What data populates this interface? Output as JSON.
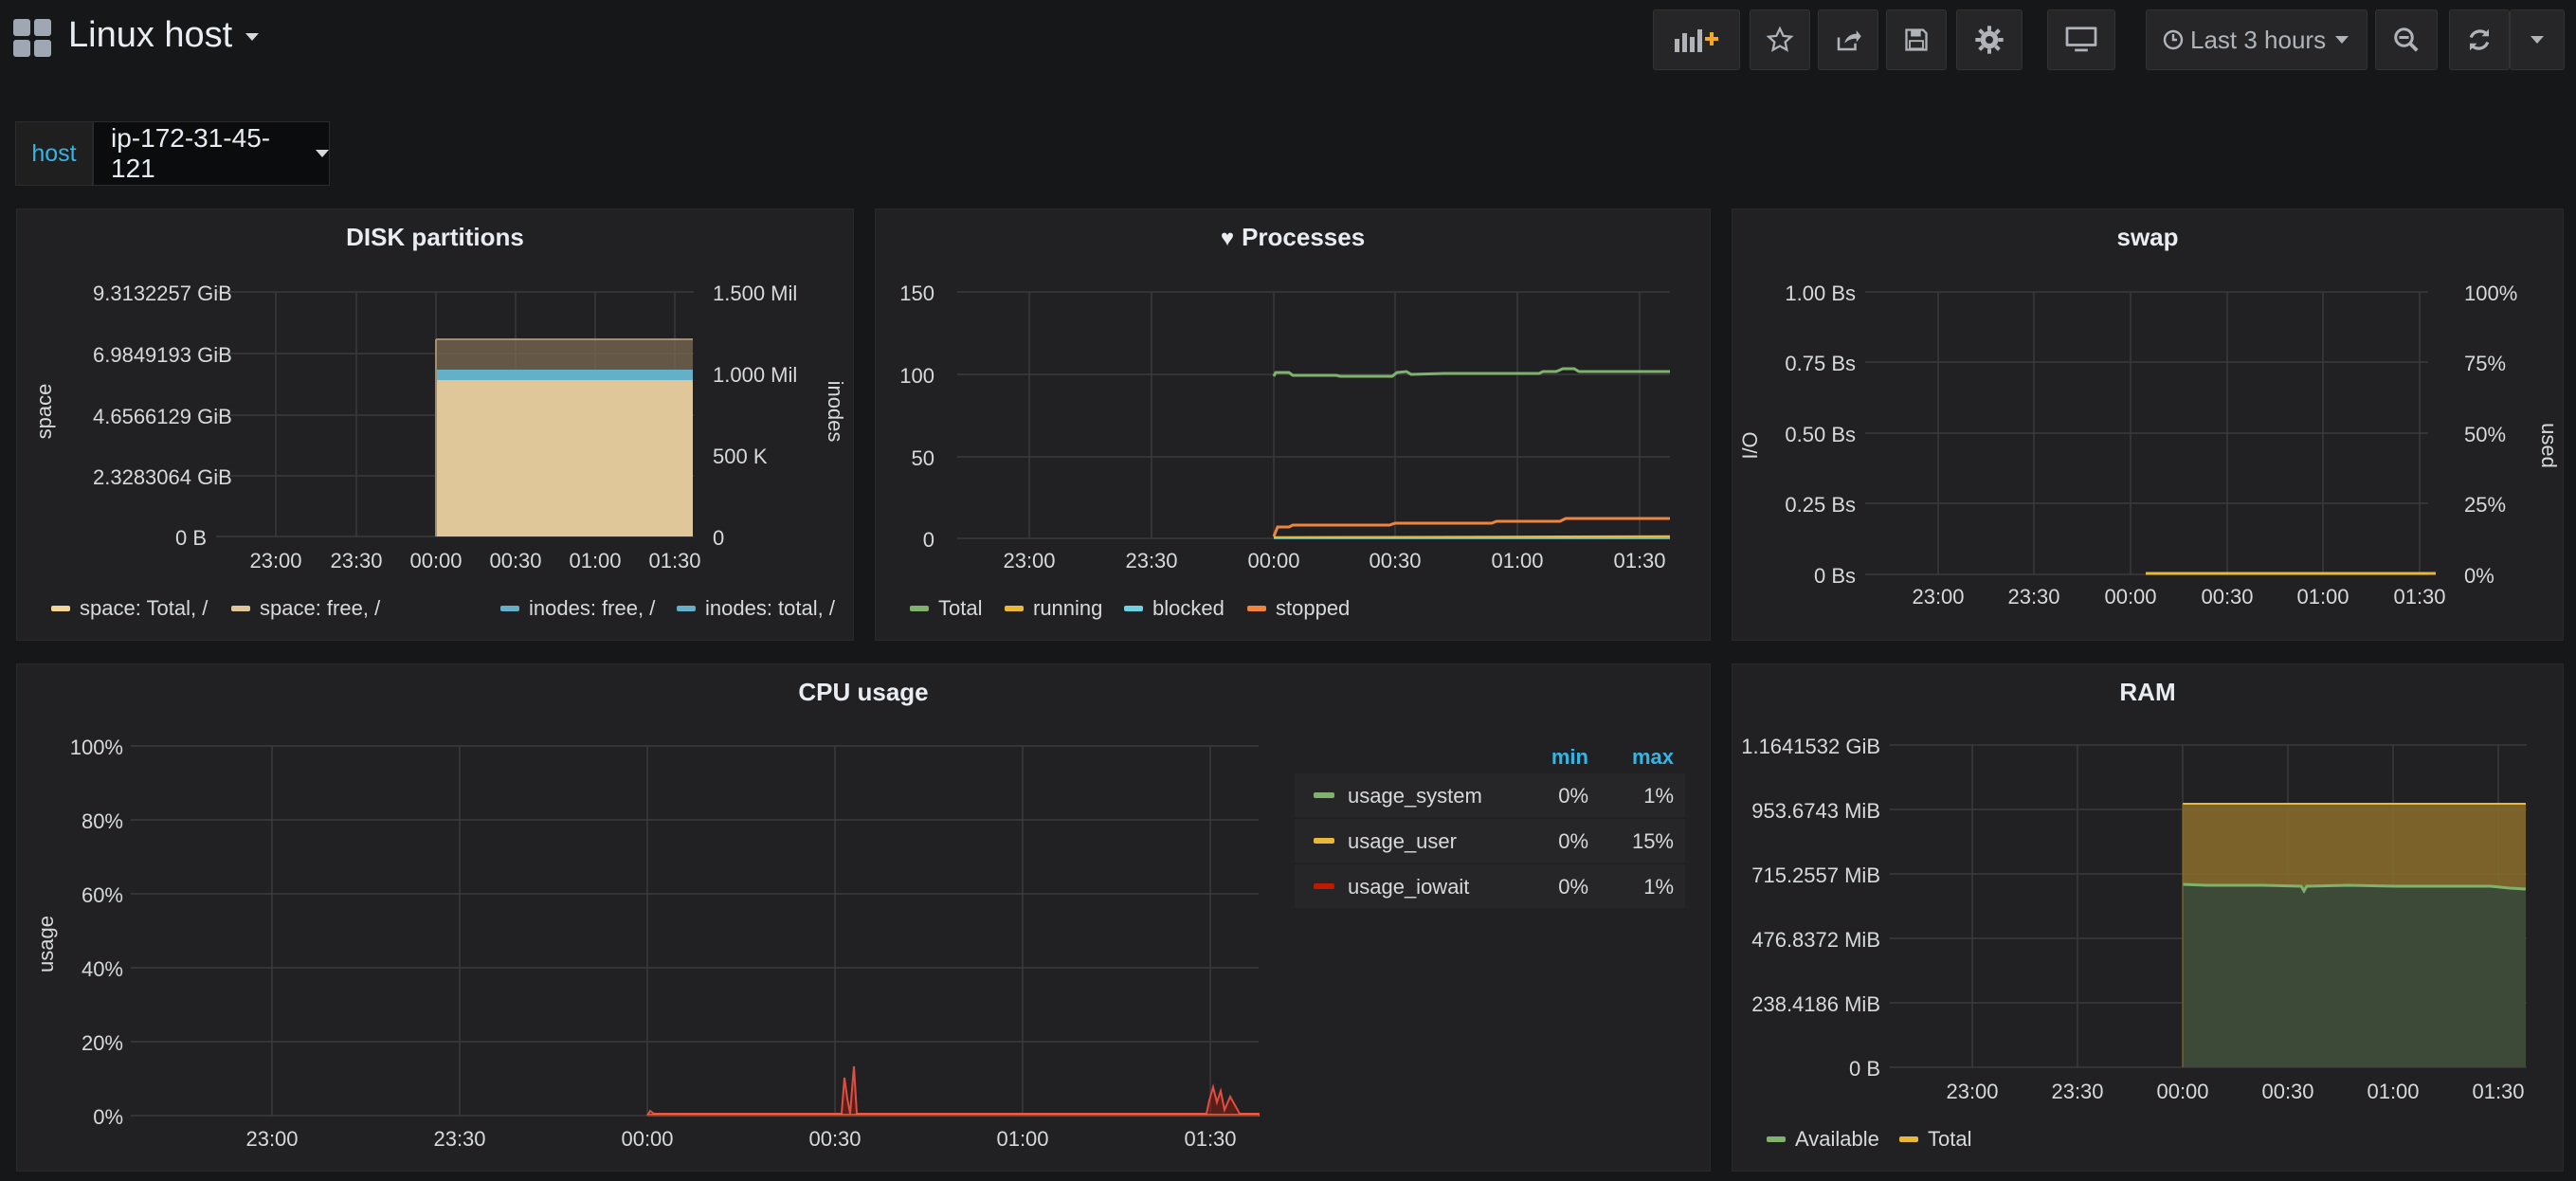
{
  "header": {
    "title": "Linux host",
    "time_range": "Last 3 hours",
    "icons": [
      "add-panel-icon",
      "star-icon",
      "share-icon",
      "save-icon",
      "settings-icon",
      "tv-mode-icon",
      "clock-icon",
      "zoom-out-icon",
      "refresh-icon",
      "chevron-down-icon"
    ]
  },
  "variables": {
    "host_label": "host",
    "host_value": "ip-172-31-45-121"
  },
  "panels": {
    "disk": {
      "title": "DISK partitions",
      "y_left_label": "space",
      "y_right_label": "inodes",
      "y_left_ticks": [
        "9.3132257 GiB",
        "6.9849193 GiB",
        "4.6566129 GiB",
        "2.3283064 GiB",
        "0 B"
      ],
      "y_right_ticks": [
        "1.500 Mil",
        "1.000 Mil",
        "500 K",
        "0"
      ],
      "x_ticks": [
        "23:00",
        "23:30",
        "00:00",
        "00:30",
        "01:00",
        "01:30"
      ],
      "legend": [
        "space: Total, /",
        "space: free, /",
        "inodes: free, /",
        "inodes: total, /"
      ]
    },
    "processes": {
      "title": "Processes",
      "y_ticks": [
        "150",
        "100",
        "50",
        "0"
      ],
      "x_ticks": [
        "23:00",
        "23:30",
        "00:00",
        "00:30",
        "01:00",
        "01:30"
      ],
      "legend": [
        "Total",
        "running",
        "blocked",
        "stopped"
      ]
    },
    "swap": {
      "title": "swap",
      "y_left_label": "I/O",
      "y_right_label": "used",
      "y_left_ticks": [
        "1.00 Bs",
        "0.75 Bs",
        "0.50 Bs",
        "0.25 Bs",
        "0 Bs"
      ],
      "y_right_ticks": [
        "100%",
        "75%",
        "50%",
        "25%",
        "0%"
      ],
      "x_ticks": [
        "23:00",
        "23:30",
        "00:00",
        "00:30",
        "01:00",
        "01:30"
      ]
    },
    "cpu": {
      "title": "CPU usage",
      "y_label": "usage",
      "y_ticks": [
        "100%",
        "80%",
        "60%",
        "40%",
        "20%",
        "0%"
      ],
      "x_ticks": [
        "23:00",
        "23:30",
        "00:00",
        "00:30",
        "01:00",
        "01:30"
      ],
      "legend_headers": {
        "min": "min",
        "max": "max"
      },
      "legend_rows": [
        {
          "name": "usage_system",
          "min": "0%",
          "max": "1%"
        },
        {
          "name": "usage_user",
          "min": "0%",
          "max": "15%"
        },
        {
          "name": "usage_iowait",
          "min": "0%",
          "max": "1%"
        }
      ]
    },
    "ram": {
      "title": "RAM",
      "y_ticks": [
        "1.1641532 GiB",
        "953.6743 MiB",
        "715.2557 MiB",
        "476.8372 MiB",
        "238.4186 MiB",
        "0 B"
      ],
      "x_ticks": [
        "23:00",
        "23:30",
        "00:00",
        "00:30",
        "01:00",
        "01:30"
      ],
      "legend": [
        "Available",
        "Total"
      ]
    }
  },
  "colors": {
    "green": "#7eb26d",
    "yellow": "#eab839",
    "lightblue": "#6ed0e0",
    "orange": "#ef843c",
    "red": "#bf1b00",
    "blue": "#64b0c8",
    "accent": "#33b5e5",
    "panel": "#212124"
  },
  "chart_data": [
    {
      "type": "area",
      "x_unit": "time",
      "x_range": [
        "22:40",
        "01:40"
      ],
      "series": [
        {
          "name": "space: Total, /",
          "axis": "left",
          "x": [
            "00:00",
            "01:36"
          ],
          "y_gib": [
            7.5,
            7.5
          ]
        },
        {
          "name": "space: free, /",
          "axis": "left",
          "x": [
            "00:00",
            "01:36"
          ],
          "y_gib": [
            5.9,
            5.9
          ]
        },
        {
          "name": "inodes: free, /",
          "axis": "right",
          "x": [
            "00:00",
            "01:36"
          ],
          "y": [
            950000,
            950000
          ]
        },
        {
          "name": "inodes: total, /",
          "axis": "right",
          "x": [
            "00:00",
            "01:36"
          ],
          "y": [
            1000000,
            1000000
          ]
        }
      ],
      "ylim_left_gib": [
        0,
        9.3132257
      ],
      "ylim_right": [
        0,
        1500000
      ]
    },
    {
      "type": "line",
      "x_range": [
        "22:40",
        "01:40"
      ],
      "x": [
        "00:00",
        "00:05",
        "00:15",
        "00:30",
        "00:50",
        "01:10",
        "01:15",
        "01:25",
        "01:37"
      ],
      "series": [
        {
          "name": "Total",
          "values": [
            98,
            99,
            97,
            97,
            100,
            100,
            102,
            101,
            101
          ]
        },
        {
          "name": "running",
          "values": [
            1,
            1,
            1,
            1,
            1,
            1,
            1,
            1,
            1
          ]
        },
        {
          "name": "blocked",
          "values": [
            0,
            0,
            0,
            0,
            0,
            0,
            0,
            0,
            0
          ]
        },
        {
          "name": "stopped",
          "values": [
            7,
            9,
            9,
            10,
            11,
            12,
            13,
            13,
            13
          ]
        }
      ],
      "ylim": [
        0,
        150
      ]
    },
    {
      "type": "line",
      "x_range": [
        "22:40",
        "01:40"
      ],
      "series": [
        {
          "name": "used",
          "x": [
            "00:00",
            "01:37"
          ],
          "values": [
            0,
            0
          ]
        }
      ],
      "ylim": [
        0,
        100
      ]
    },
    {
      "type": "line",
      "x_range": [
        "22:40",
        "01:40"
      ],
      "x": [
        "00:00",
        "00:30",
        "00:31",
        "00:32",
        "01:00",
        "01:30",
        "01:32",
        "01:34",
        "01:40"
      ],
      "series": [
        {
          "name": "usage_system",
          "values": [
            0,
            0,
            0,
            0,
            0,
            0,
            0,
            0,
            0
          ]
        },
        {
          "name": "usage_user",
          "values": [
            0.5,
            0.5,
            12,
            15,
            0.5,
            0.5,
            8,
            6,
            0.5
          ]
        },
        {
          "name": "usage_iowait",
          "values": [
            0,
            0,
            1,
            0,
            0,
            0,
            1,
            0,
            0
          ]
        }
      ],
      "ylim": [
        0,
        100
      ]
    },
    {
      "type": "area",
      "x_range": [
        "22:40",
        "01:40"
      ],
      "x": [
        "00:00",
        "00:15",
        "00:30",
        "00:45",
        "01:00",
        "01:15",
        "01:37"
      ],
      "series": [
        {
          "name": "Available",
          "values_mib": [
            735,
            734,
            729,
            733,
            733,
            732,
            725
          ]
        },
        {
          "name": "Total",
          "values_mib": [
            953.6743,
            953.6743,
            953.6743,
            953.6743,
            953.6743,
            953.6743,
            953.6743
          ]
        }
      ],
      "ylim_mib": [
        0,
        1192.093
      ]
    }
  ]
}
